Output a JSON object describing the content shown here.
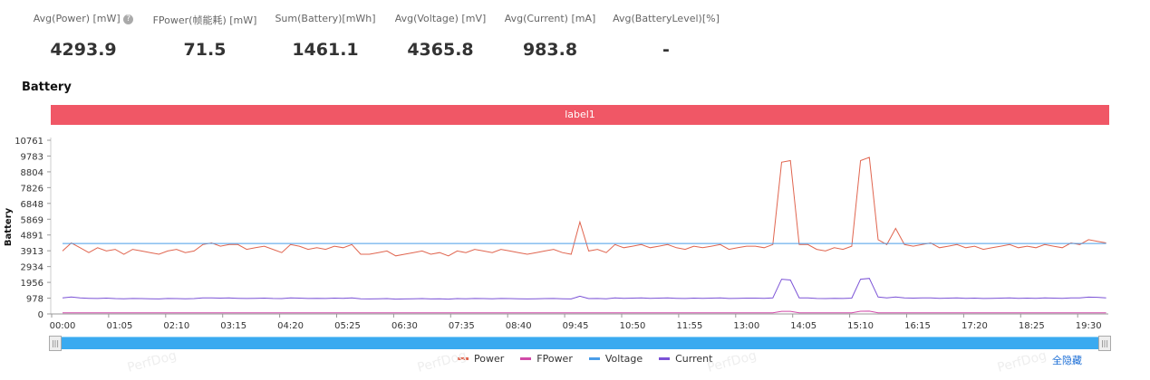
{
  "stats": [
    {
      "label": "Avg(Power) [mW]",
      "value": "4293.9",
      "help": "?"
    },
    {
      "label": "FPower(帧能耗) [mW]",
      "value": "71.5"
    },
    {
      "label": "Sum(Battery)[mWh]",
      "value": "1461.1"
    },
    {
      "label": "Avg(Voltage) [mV]",
      "value": "4365.8"
    },
    {
      "label": "Avg(Current) [mA]",
      "value": "983.8"
    },
    {
      "label": "Avg(BatteryLevel)[%]",
      "value": "-"
    }
  ],
  "section_title": "Battery",
  "label_bar": {
    "text": "label1",
    "color": "#f05766"
  },
  "legend": {
    "hide_all": "全隐藏"
  },
  "watermark": "PerfDog",
  "chart_data": {
    "type": "line",
    "ylabel": "Battery",
    "ylim": [
      0,
      10761
    ],
    "yticks": [
      0,
      978,
      1956,
      2934,
      3913,
      4891,
      5869,
      6848,
      7826,
      8804,
      9783,
      10761
    ],
    "xticks": [
      "00:00",
      "01:05",
      "02:10",
      "03:15",
      "04:20",
      "05:25",
      "06:30",
      "07:35",
      "08:40",
      "09:45",
      "10:50",
      "11:55",
      "13:00",
      "14:05",
      "15:10",
      "16:15",
      "17:20",
      "18:25",
      "19:30"
    ],
    "x_unit": "seconds",
    "x": [
      0,
      10,
      20,
      30,
      40,
      50,
      60,
      70,
      80,
      90,
      100,
      110,
      120,
      130,
      140,
      150,
      160,
      170,
      180,
      190,
      200,
      210,
      220,
      230,
      240,
      250,
      260,
      270,
      280,
      290,
      300,
      310,
      320,
      330,
      340,
      350,
      360,
      370,
      380,
      390,
      400,
      410,
      420,
      430,
      440,
      450,
      460,
      470,
      480,
      490,
      500,
      510,
      520,
      530,
      540,
      550,
      560,
      570,
      580,
      590,
      600,
      610,
      620,
      630,
      640,
      650,
      660,
      670,
      680,
      690,
      700,
      710,
      720,
      730,
      740,
      750,
      760,
      770,
      780,
      790,
      800,
      810,
      820,
      830,
      840,
      850,
      860,
      870,
      880,
      890,
      900,
      910,
      920,
      930,
      940,
      950,
      960,
      970,
      980,
      990,
      1000,
      1010,
      1020,
      1030,
      1040,
      1050,
      1060,
      1070,
      1080,
      1090,
      1100,
      1110,
      1120,
      1130,
      1140,
      1150,
      1160,
      1170,
      1180,
      1190
    ],
    "series": [
      {
        "name": "Power",
        "color": "#e0654f",
        "values": [
          3900,
          4400,
          4100,
          3800,
          4100,
          3900,
          4000,
          3700,
          4000,
          3900,
          3800,
          3700,
          3900,
          4000,
          3800,
          3900,
          4300,
          4400,
          4200,
          4300,
          4300,
          4000,
          4100,
          4200,
          4000,
          3800,
          4300,
          4200,
          4000,
          4100,
          4000,
          4200,
          4100,
          4300,
          3700,
          3700,
          3800,
          3900,
          3600,
          3700,
          3800,
          3900,
          3700,
          3800,
          3600,
          3900,
          3800,
          4000,
          3900,
          3800,
          4000,
          3900,
          3800,
          3700,
          3800,
          3900,
          4000,
          3800,
          3700,
          5700,
          3900,
          4000,
          3800,
          4300,
          4100,
          4200,
          4300,
          4100,
          4200,
          4300,
          4100,
          4000,
          4200,
          4100,
          4200,
          4300,
          4000,
          4100,
          4200,
          4200,
          4100,
          4300,
          9400,
          9500,
          4300,
          4300,
          4000,
          3900,
          4100,
          4000,
          4200,
          9500,
          9700,
          4600,
          4300,
          5300,
          4300,
          4200,
          4300,
          4400,
          4100,
          4200,
          4300,
          4100,
          4200,
          4000,
          4100,
          4200,
          4300,
          4100,
          4200,
          4100,
          4300,
          4200,
          4100,
          4400,
          4300,
          4600,
          4500,
          4400
        ]
      },
      {
        "name": "FPower",
        "color": "#d14aa8",
        "values": [
          72,
          70,
          73,
          71,
          70,
          72,
          71,
          70,
          72,
          71,
          71,
          70,
          72,
          71,
          70,
          72,
          71,
          73,
          71,
          70,
          72,
          71,
          70,
          72,
          71,
          70,
          72,
          71,
          70,
          72,
          71,
          70,
          72,
          71,
          70,
          72,
          71,
          70,
          72,
          71,
          71,
          70,
          72,
          71,
          70,
          72,
          71,
          70,
          72,
          71,
          71,
          70,
          72,
          71,
          70,
          72,
          71,
          70,
          72,
          75,
          71,
          70,
          72,
          71,
          70,
          72,
          71,
          70,
          72,
          71,
          71,
          70,
          72,
          71,
          70,
          72,
          71,
          70,
          72,
          71,
          71,
          70,
          160,
          165,
          72,
          71,
          70,
          72,
          71,
          70,
          72,
          170,
          175,
          72,
          71,
          70,
          72,
          71,
          70,
          72,
          71,
          70,
          72,
          71,
          70,
          72,
          71,
          70,
          72,
          71,
          71,
          70,
          72,
          71,
          70,
          72,
          71,
          70,
          72,
          71
        ]
      },
      {
        "name": "Voltage",
        "color": "#4a9de8",
        "values": [
          4365,
          4365,
          4365,
          4365,
          4365,
          4365,
          4365,
          4365,
          4365,
          4365,
          4365,
          4365,
          4365,
          4365,
          4365,
          4365,
          4365,
          4365,
          4365,
          4365,
          4365,
          4365,
          4365,
          4365,
          4365,
          4365,
          4365,
          4365,
          4365,
          4365,
          4365,
          4365,
          4365,
          4365,
          4365,
          4365,
          4365,
          4365,
          4365,
          4365,
          4365,
          4365,
          4365,
          4365,
          4365,
          4365,
          4365,
          4365,
          4365,
          4365,
          4365,
          4365,
          4365,
          4365,
          4365,
          4365,
          4365,
          4365,
          4365,
          4365,
          4365,
          4365,
          4365,
          4365,
          4365,
          4365,
          4365,
          4365,
          4365,
          4365,
          4365,
          4365,
          4365,
          4365,
          4365,
          4365,
          4365,
          4365,
          4365,
          4365,
          4365,
          4365,
          4365,
          4365,
          4365,
          4365,
          4365,
          4365,
          4365,
          4365,
          4365,
          4365,
          4365,
          4365,
          4365,
          4365,
          4365,
          4365,
          4365,
          4365,
          4365,
          4365,
          4365,
          4365,
          4365,
          4365,
          4365,
          4365,
          4365,
          4365,
          4365,
          4365,
          4365,
          4365,
          4365,
          4365,
          4365,
          4365,
          4365,
          4365
        ]
      },
      {
        "name": "Current",
        "color": "#7b52d6",
        "values": [
          1000,
          1050,
          990,
          970,
          960,
          980,
          950,
          940,
          960,
          950,
          940,
          930,
          960,
          950,
          940,
          950,
          990,
          1000,
          980,
          990,
          970,
          960,
          970,
          980,
          960,
          950,
          990,
          980,
          960,
          970,
          960,
          980,
          970,
          990,
          940,
          930,
          940,
          950,
          920,
          930,
          940,
          950,
          930,
          940,
          920,
          950,
          940,
          960,
          950,
          940,
          960,
          950,
          940,
          930,
          940,
          950,
          960,
          940,
          930,
          1100,
          950,
          960,
          940,
          990,
          970,
          980,
          990,
          970,
          980,
          990,
          970,
          960,
          980,
          970,
          980,
          990,
          960,
          970,
          980,
          980,
          970,
          990,
          2150,
          2100,
          1000,
          990,
          960,
          950,
          970,
          960,
          980,
          2150,
          2200,
          1050,
          1000,
          1050,
          990,
          980,
          990,
          1000,
          970,
          980,
          990,
          970,
          980,
          960,
          970,
          980,
          990,
          970,
          980,
          970,
          990,
          980,
          970,
          1000,
          990,
          1040,
          1030,
          1000
        ]
      }
    ]
  }
}
